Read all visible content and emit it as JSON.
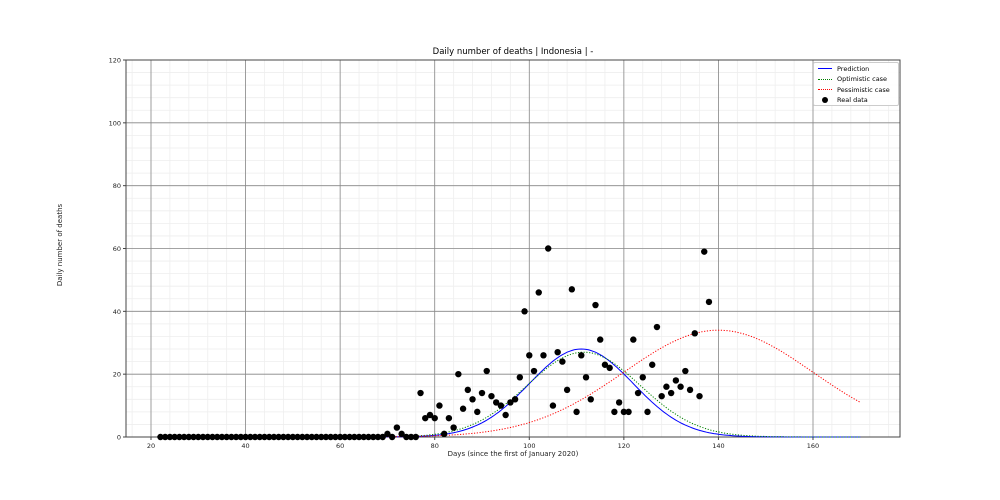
{
  "chart_data": {
    "type": "line",
    "title": "Daily number of deaths | Indonesia | -",
    "xlabel": "Days (since the first of January 2020)",
    "ylabel": "Daily number of deaths",
    "xlim": [
      15,
      178
    ],
    "ylim": [
      0,
      120
    ],
    "xticks": [
      20,
      40,
      60,
      80,
      100,
      120,
      140,
      160
    ],
    "yticks": [
      0,
      20,
      40,
      60,
      80,
      100,
      120
    ],
    "grid": true,
    "legend_position": "upper right",
    "legend": [
      "Prediction",
      "Optimistic case",
      "Pessimistic case",
      "Real data"
    ],
    "colors": {
      "prediction": "#0000ff",
      "optimistic": "#008000",
      "pessimistic": "#ff0000",
      "real": "#000000"
    },
    "series": [
      {
        "name": "Prediction",
        "style": "solid",
        "model": {
          "peak_day": 111,
          "peak_value": 28,
          "width": 11
        }
      },
      {
        "name": "Optimistic case",
        "style": "dotted",
        "model": {
          "peak_day": 111.5,
          "peak_value": 27,
          "width": 12
        }
      },
      {
        "name": "Pessimistic case",
        "style": "dotted",
        "model": {
          "peak_day": 140,
          "peak_value": 34,
          "width": 20
        }
      },
      {
        "name": "Real data",
        "style": "markers",
        "x": [
          22,
          23,
          24,
          25,
          26,
          27,
          28,
          29,
          30,
          31,
          32,
          33,
          34,
          35,
          36,
          37,
          38,
          39,
          40,
          41,
          42,
          43,
          44,
          45,
          46,
          47,
          48,
          49,
          50,
          51,
          52,
          53,
          54,
          55,
          56,
          57,
          58,
          59,
          60,
          61,
          62,
          63,
          64,
          65,
          66,
          67,
          68,
          69,
          70,
          71,
          72,
          73,
          74,
          75,
          76,
          77,
          78,
          79,
          80,
          81,
          82,
          83,
          84,
          85,
          86,
          87,
          88,
          89,
          90,
          91,
          92,
          93,
          94,
          95,
          96,
          97,
          98,
          99,
          100,
          101,
          102,
          103,
          104,
          105,
          106,
          107,
          108,
          109,
          110,
          111,
          112,
          113,
          114,
          115,
          116,
          117,
          118,
          119,
          120,
          121,
          122,
          123,
          124,
          125,
          126,
          127,
          128,
          129,
          130,
          131,
          132,
          133,
          134,
          135,
          136,
          137,
          138
        ],
        "y": [
          0,
          0,
          0,
          0,
          0,
          0,
          0,
          0,
          0,
          0,
          0,
          0,
          0,
          0,
          0,
          0,
          0,
          0,
          0,
          0,
          0,
          0,
          0,
          0,
          0,
          0,
          0,
          0,
          0,
          0,
          0,
          0,
          0,
          0,
          0,
          0,
          0,
          0,
          0,
          0,
          0,
          0,
          0,
          0,
          0,
          0,
          0,
          0,
          1,
          0,
          3,
          1,
          0,
          0,
          0,
          14,
          6,
          7,
          6,
          10,
          1,
          6,
          3,
          20,
          9,
          15,
          12,
          8,
          14,
          21,
          13,
          11,
          10,
          7,
          11,
          12,
          19,
          40,
          26,
          21,
          46,
          26,
          60,
          10,
          27,
          24,
          15,
          47,
          8,
          26,
          19,
          12,
          42,
          31,
          23,
          22,
          8,
          11,
          8,
          8,
          31,
          14,
          19,
          8,
          23,
          35,
          13,
          16,
          14,
          18,
          16,
          21,
          15,
          33,
          13,
          59,
          43
        ]
      }
    ],
    "x_end": 170
  }
}
